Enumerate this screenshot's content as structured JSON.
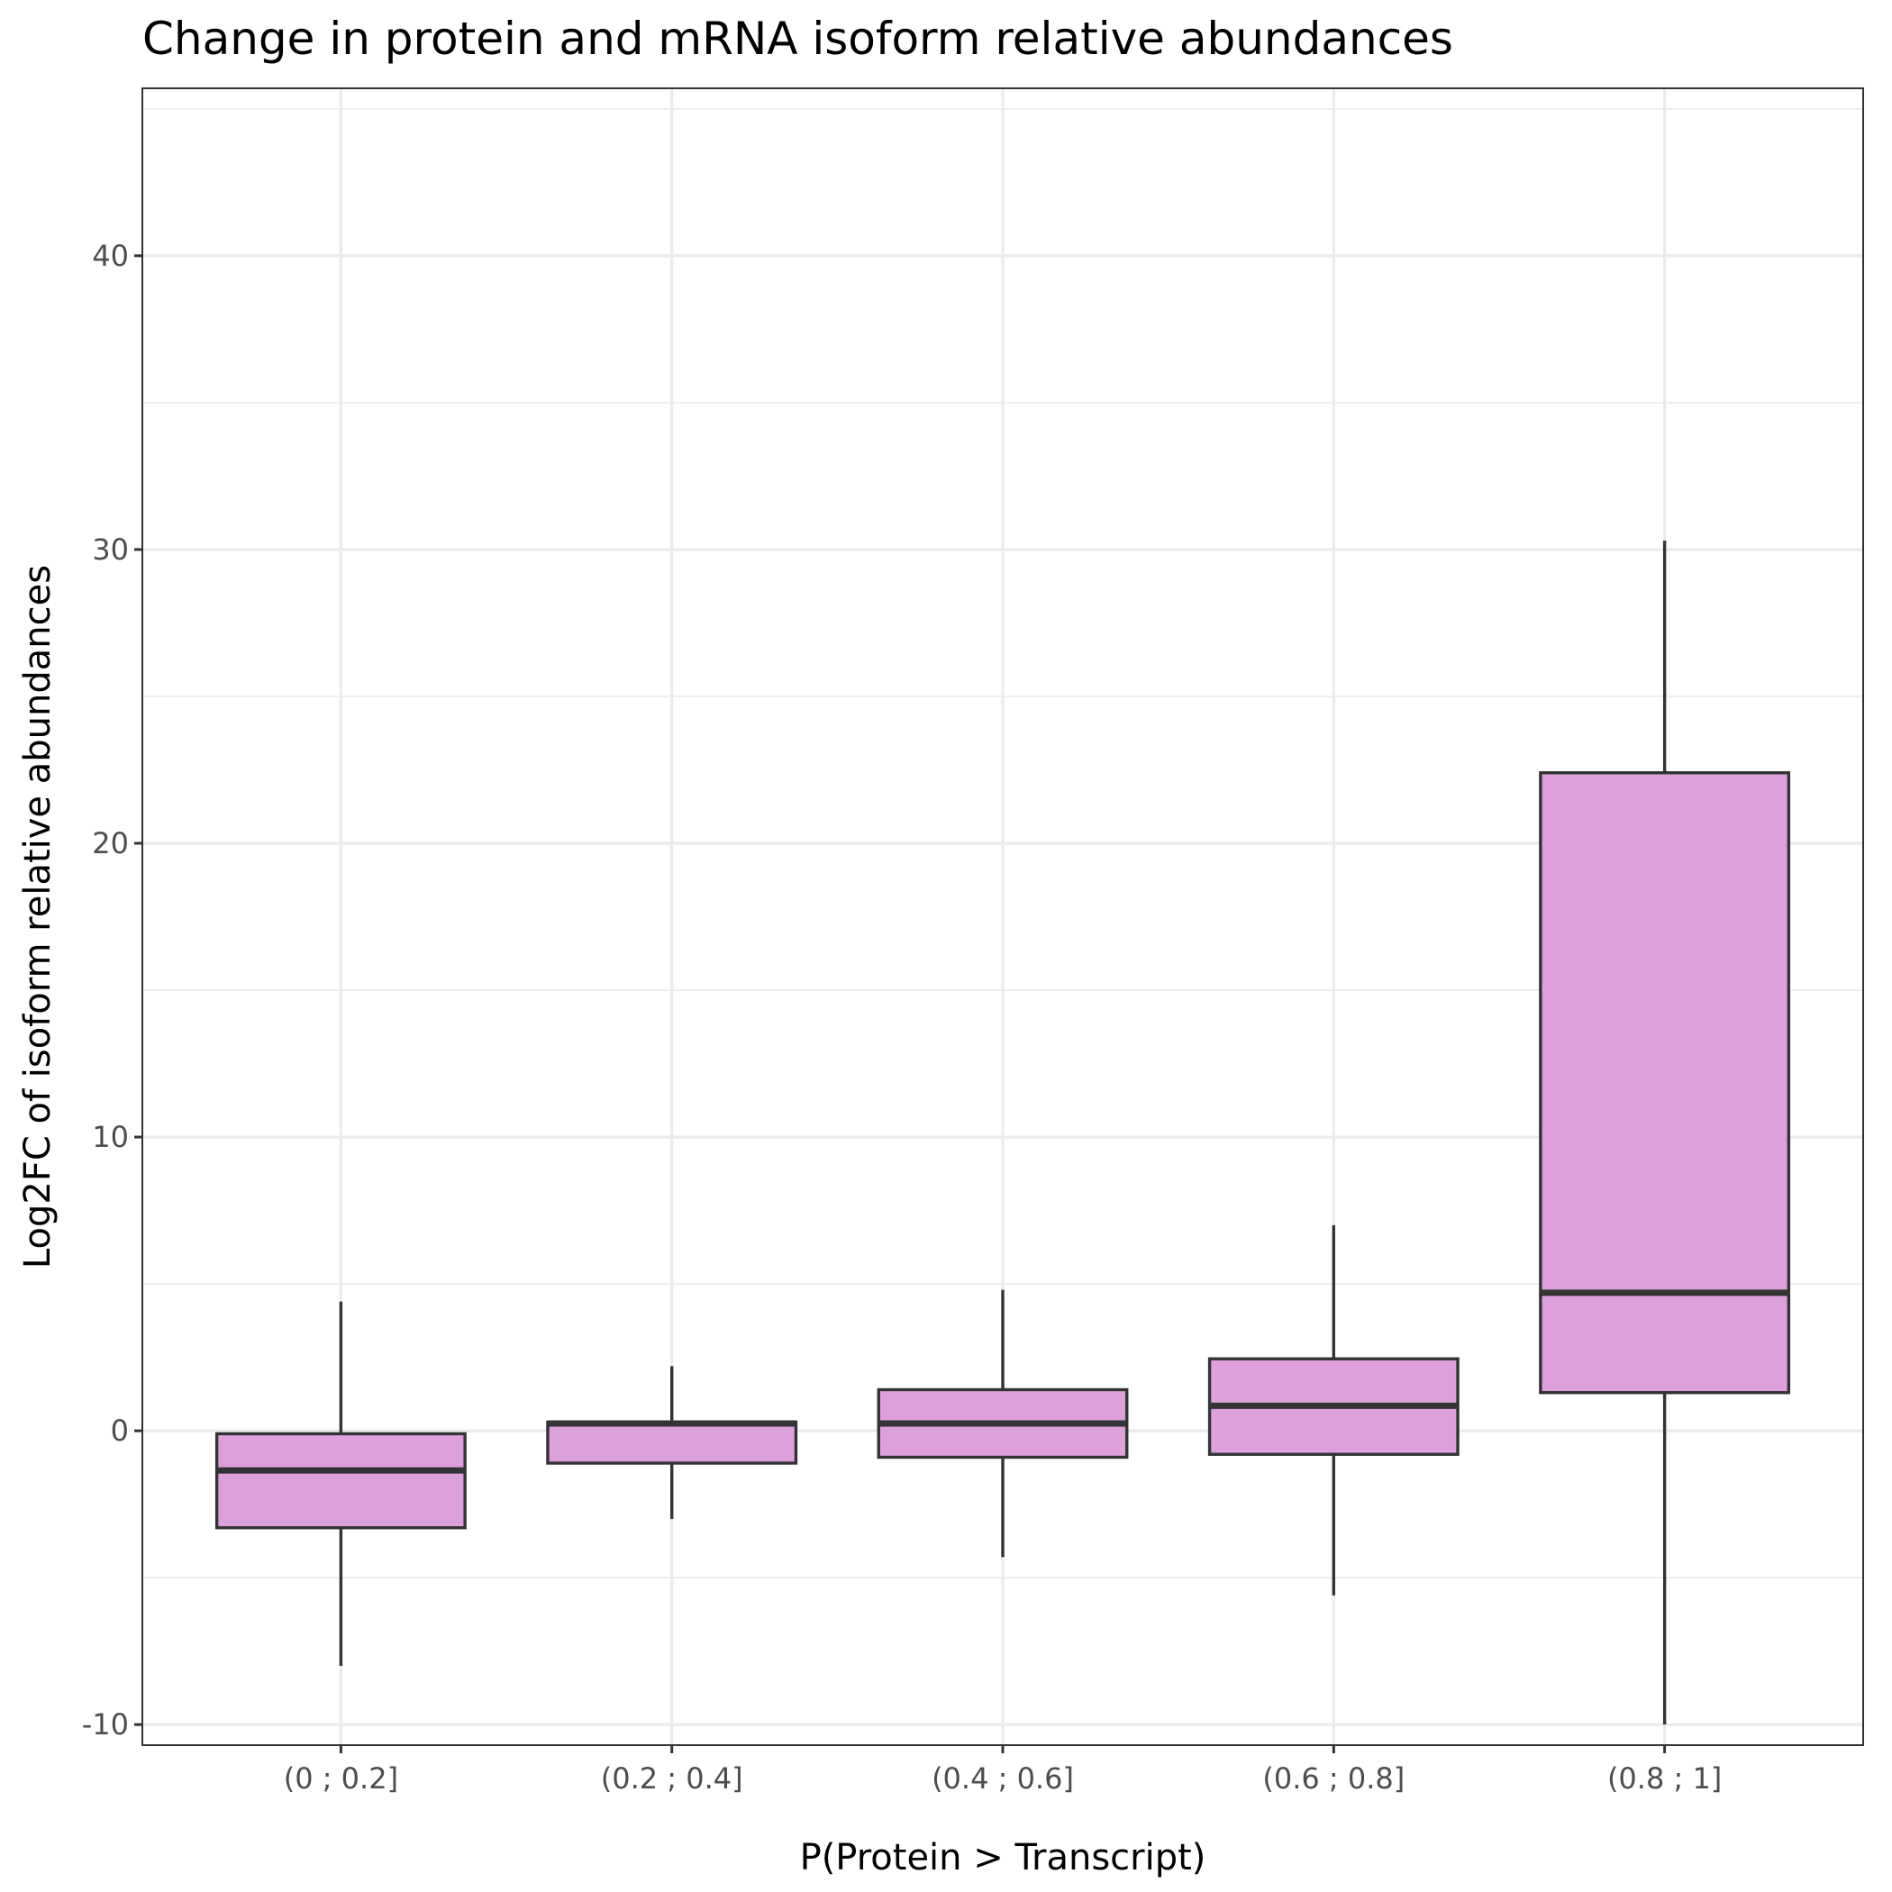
{
  "chart_data": {
    "type": "boxplot",
    "title": "Change in protein and mRNA isoform relative abundances",
    "xlabel": "P(Protein > Transcript)",
    "ylabel": "Log2FC of isoform relative abundances",
    "ylim": [
      -10.7,
      45.7
    ],
    "yticks": [
      -10,
      0,
      10,
      20,
      30,
      40
    ],
    "ytick_labels": [
      "-10",
      "0",
      "10",
      "20",
      "30",
      "40"
    ],
    "grid": true,
    "fill_color": "#dda0dd",
    "edge_color": "#333333",
    "categories": [
      "(0 ; 0.2]",
      "(0.2 ; 0.4]",
      "(0.4 ; 0.6]",
      "(0.6 ; 0.8]",
      "(0.8 ; 1]"
    ],
    "boxes": [
      {
        "category": "(0 ; 0.2]",
        "whisker_low": -8.0,
        "q1": -3.3,
        "median": -1.35,
        "q3": -0.1,
        "whisker_high": 4.4
      },
      {
        "category": "(0.2 ; 0.4]",
        "whisker_low": -3.0,
        "q1": -1.1,
        "median": 0.25,
        "q3": 0.3,
        "whisker_high": 2.2
      },
      {
        "category": "(0.4 ; 0.6]",
        "whisker_low": -4.3,
        "q1": -0.9,
        "median": 0.25,
        "q3": 1.4,
        "whisker_high": 4.8
      },
      {
        "category": "(0.6 ; 0.8]",
        "whisker_low": -5.6,
        "q1": -0.8,
        "median": 0.85,
        "q3": 2.45,
        "whisker_high": 7.0
      },
      {
        "category": "(0.8 ; 1]",
        "whisker_low": -10.0,
        "q1": 1.3,
        "median": 4.7,
        "q3": 22.4,
        "whisker_high": 30.3
      }
    ]
  }
}
